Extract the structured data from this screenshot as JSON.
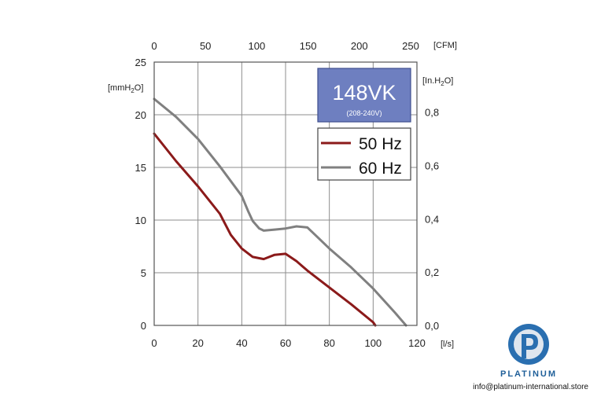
{
  "chart_data": {
    "type": "line",
    "title": "148VK",
    "subtitle": "(208-240V)",
    "x_bottom": {
      "unit": "[l/s]",
      "range": [
        0,
        120
      ],
      "ticks": [
        "0",
        "20",
        "40",
        "60",
        "80",
        "100",
        "120"
      ]
    },
    "x_top": {
      "unit": "[CFM]",
      "range": [
        0,
        250
      ],
      "ticks": [
        "0",
        "50",
        "100",
        "150",
        "200",
        "250"
      ]
    },
    "y_left": {
      "unit_main": "[mmH",
      "unit_sub": "2",
      "unit_end": "O]",
      "range": [
        0,
        25
      ],
      "ticks": [
        "0",
        "5",
        "10",
        "15",
        "20",
        "25"
      ]
    },
    "y_right": {
      "unit_main": "[In.H",
      "unit_sub": "2",
      "unit_end": "O]",
      "ticks": [
        "0,0",
        "0,2",
        "0,4",
        "0,6",
        "0,8"
      ]
    },
    "grid": true,
    "legend": {
      "placement": "top-right"
    },
    "series": [
      {
        "name": "50 Hz",
        "color": "#8b1a1a",
        "x": [
          0,
          10,
          20,
          30,
          35,
          40,
          45,
          50,
          55,
          60,
          65,
          70,
          80,
          90,
          100,
          101
        ],
        "y": [
          18.2,
          15.6,
          13.2,
          10.6,
          8.6,
          7.3,
          6.5,
          6.3,
          6.7,
          6.8,
          6.1,
          5.2,
          3.6,
          2.0,
          0.3,
          0
        ]
      },
      {
        "name": "60 Hz",
        "color": "#808080",
        "x": [
          0,
          10,
          20,
          30,
          40,
          43,
          45,
          48,
          50,
          55,
          60,
          65,
          70,
          75,
          80,
          90,
          100,
          110,
          115
        ],
        "y": [
          21.5,
          19.8,
          17.7,
          15.1,
          12.3,
          10.8,
          9.9,
          9.2,
          9.0,
          9.1,
          9.2,
          9.4,
          9.3,
          8.3,
          7.3,
          5.5,
          3.5,
          1.2,
          0
        ]
      }
    ]
  },
  "brand": {
    "name": "PLATINUM",
    "email": "info@platinum-international.store"
  }
}
